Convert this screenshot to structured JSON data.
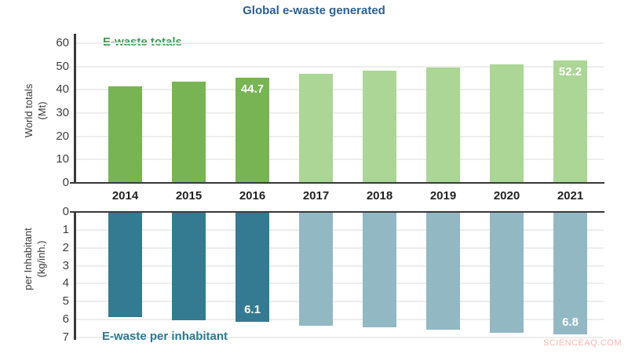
{
  "page": {
    "title": "Global e-waste generated",
    "title_color": "#2d5f8f",
    "watermark": "SCIENCEAQ.COM",
    "watermark_color": "#f4b6b6",
    "background_color": "#ffffff",
    "axis_color": "#3a3a3a",
    "grid_color": "#ededed"
  },
  "chart_data": [
    {
      "type": "bar",
      "panel": "top",
      "label": "E-waste totals",
      "label_color": "#3d9a55",
      "ylabel": "World totals",
      "ylabel_unit": "(Mt)",
      "categories": [
        "2014",
        "2015",
        "2016",
        "2017",
        "2018",
        "2019",
        "2020",
        "2021"
      ],
      "values": [
        41.2,
        43.0,
        44.7,
        46.4,
        47.9,
        49.3,
        50.7,
        52.2
      ],
      "bar_value_labels": [
        "",
        "",
        "44.7",
        "",
        "",
        "",
        "",
        "52.2"
      ],
      "yticks": [
        0,
        10,
        20,
        30,
        40,
        50,
        60
      ],
      "ylim": [
        0,
        60
      ],
      "grid": true,
      "axis_orientation": "normal",
      "bar_colors": [
        "#78b454",
        "#78b454",
        "#78b454",
        "#abd696",
        "#abd696",
        "#abd696",
        "#abd696",
        "#abd696"
      ],
      "legend_position": "inside-top-left"
    },
    {
      "type": "bar",
      "panel": "bottom",
      "label": "E-waste per inhabitant",
      "label_color": "#2b7b93",
      "ylabel": "per Inhabitant",
      "ylabel_unit": "(kg/inh.)",
      "categories": [
        "2014",
        "2015",
        "2016",
        "2017",
        "2018",
        "2019",
        "2020",
        "2021"
      ],
      "values": [
        5.8,
        6.0,
        6.1,
        6.3,
        6.4,
        6.5,
        6.7,
        6.8
      ],
      "bar_value_labels": [
        "",
        "",
        "6.1",
        "",
        "",
        "",
        "",
        "6.8"
      ],
      "yticks": [
        0,
        1,
        2,
        3,
        4,
        5,
        6,
        7
      ],
      "ylim": [
        0,
        7
      ],
      "grid": true,
      "axis_orientation": "inverted",
      "bar_colors": [
        "#347b91",
        "#347b91",
        "#347b91",
        "#92b8c4",
        "#92b8c4",
        "#92b8c4",
        "#92b8c4",
        "#92b8c4"
      ],
      "legend_position": "inside-bottom-left"
    }
  ]
}
